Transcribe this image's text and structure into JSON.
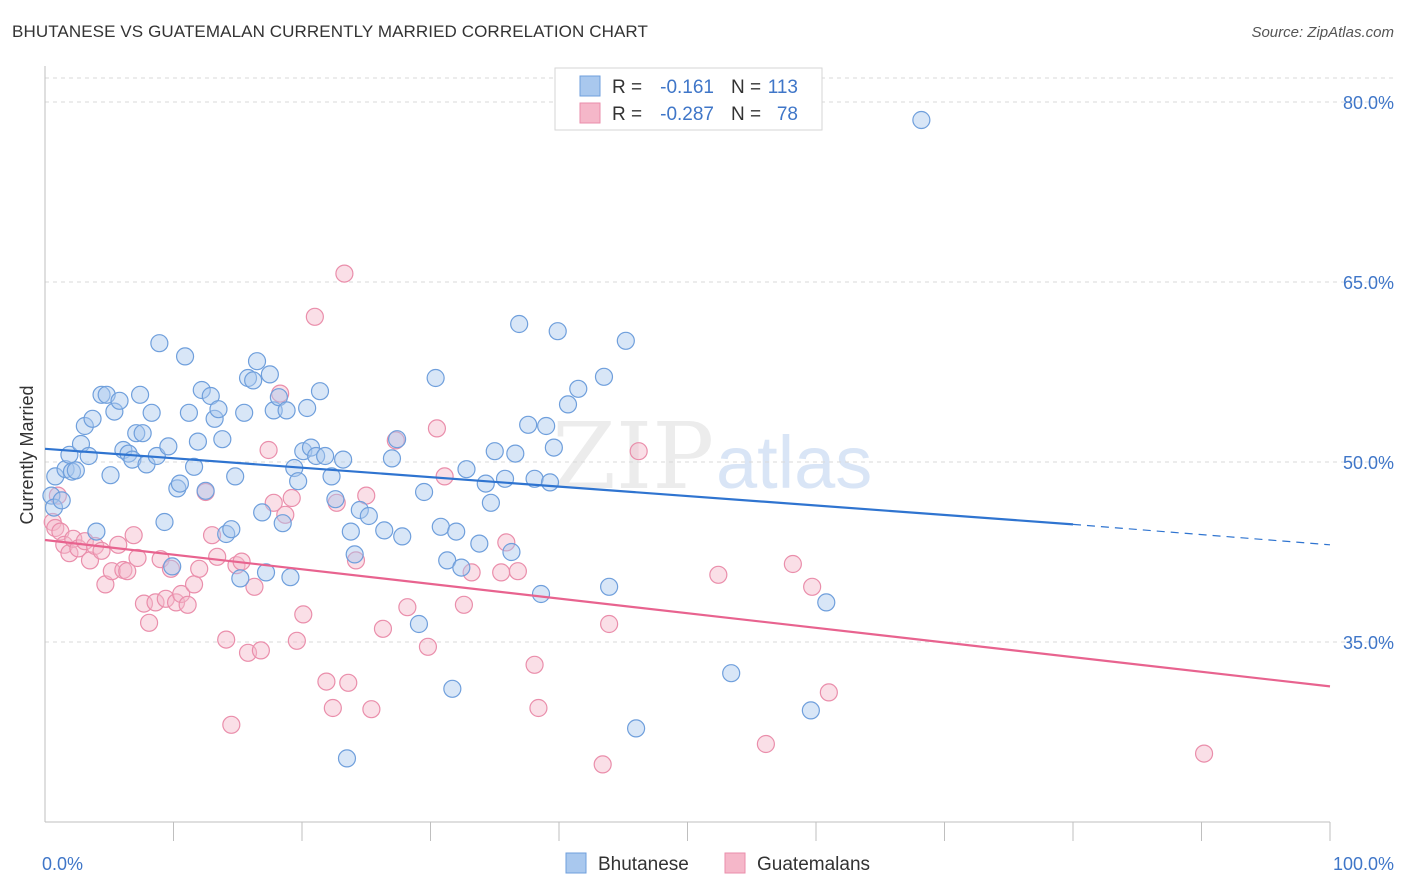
{
  "header": {
    "title": "BHUTANESE VS GUATEMALAN CURRENTLY MARRIED CORRELATION CHART",
    "source": "Source: ZipAtlas.com"
  },
  "watermark": {
    "zip": "ZIP",
    "atlas": "atlas"
  },
  "legend": {
    "items": [
      {
        "r_label": "R =",
        "r_value": "-0.161",
        "n_label": "N =",
        "n_value": "113"
      },
      {
        "r_label": "R =",
        "r_value": "-0.287",
        "n_label": "N =",
        "n_value": "78"
      }
    ]
  },
  "bottom_legend": [
    "Bhutanese",
    "Guatemalans"
  ],
  "colors": {
    "blue_fill": "#a9c8ee",
    "blue_stroke": "#6f9fdc",
    "blue_line": "#2f74d0",
    "pink_fill": "#f5b7c9",
    "pink_stroke": "#ea8eab",
    "pink_line": "#e8638f",
    "accent_text": "#3f76c8",
    "grid": "#d9d9d9"
  },
  "chart_data": {
    "type": "scatter",
    "title": "BHUTANESE VS GUATEMALAN CURRENTLY MARRIED CORRELATION CHART",
    "xlabel": "",
    "ylabel": "Currently Married",
    "xlim": [
      0,
      100
    ],
    "ylim": [
      20,
      83
    ],
    "x_tick_labels": [
      "0.0%",
      "100.0%"
    ],
    "y_ticks": [
      35,
      50,
      65,
      80
    ],
    "y_tick_labels": [
      "35.0%",
      "50.0%",
      "65.0%",
      "80.0%"
    ],
    "grid": true,
    "legend_position": "top-center",
    "series": [
      {
        "name": "Bhutanese",
        "color": "#a9c8ee",
        "r": -0.161,
        "n": 113,
        "trend": {
          "x": [
            0,
            80,
            100
          ],
          "y": [
            51.1,
            44.8,
            43.1
          ],
          "solid_until_x": 80
        },
        "points": [
          [
            0.5,
            47.2
          ],
          [
            0.7,
            46.2
          ],
          [
            0.8,
            48.8
          ],
          [
            1.3,
            46.8
          ],
          [
            1.6,
            49.4
          ],
          [
            1.9,
            50.6
          ],
          [
            2.1,
            49.2
          ],
          [
            2.4,
            49.3
          ],
          [
            2.8,
            51.5
          ],
          [
            3.1,
            53.0
          ],
          [
            3.4,
            50.5
          ],
          [
            3.7,
            53.6
          ],
          [
            4.0,
            44.2
          ],
          [
            4.4,
            55.6
          ],
          [
            4.8,
            55.6
          ],
          [
            5.1,
            48.9
          ],
          [
            5.4,
            54.2
          ],
          [
            5.8,
            55.1
          ],
          [
            6.1,
            51.0
          ],
          [
            6.5,
            50.7
          ],
          [
            6.8,
            50.2
          ],
          [
            7.1,
            52.4
          ],
          [
            7.4,
            55.6
          ],
          [
            7.6,
            52.4
          ],
          [
            7.9,
            49.8
          ],
          [
            8.3,
            54.1
          ],
          [
            8.7,
            50.5
          ],
          [
            8.9,
            59.9
          ],
          [
            9.3,
            45.0
          ],
          [
            9.6,
            51.3
          ],
          [
            9.9,
            41.3
          ],
          [
            10.3,
            47.8
          ],
          [
            10.5,
            48.2
          ],
          [
            10.9,
            58.8
          ],
          [
            11.2,
            54.1
          ],
          [
            11.6,
            49.6
          ],
          [
            11.9,
            51.7
          ],
          [
            12.2,
            56.0
          ],
          [
            12.5,
            47.6
          ],
          [
            12.9,
            55.5
          ],
          [
            13.2,
            53.6
          ],
          [
            13.5,
            54.4
          ],
          [
            13.8,
            51.9
          ],
          [
            14.1,
            44.0
          ],
          [
            14.5,
            44.4
          ],
          [
            14.8,
            48.8
          ],
          [
            15.2,
            40.3
          ],
          [
            15.5,
            54.1
          ],
          [
            15.8,
            57.0
          ],
          [
            16.2,
            56.8
          ],
          [
            16.5,
            58.4
          ],
          [
            16.9,
            45.8
          ],
          [
            17.2,
            40.8
          ],
          [
            17.5,
            57.3
          ],
          [
            17.8,
            54.3
          ],
          [
            18.2,
            55.4
          ],
          [
            18.5,
            44.9
          ],
          [
            18.8,
            54.3
          ],
          [
            19.1,
            40.4
          ],
          [
            19.4,
            49.5
          ],
          [
            19.7,
            48.4
          ],
          [
            20.1,
            50.9
          ],
          [
            20.4,
            54.5
          ],
          [
            20.7,
            51.2
          ],
          [
            21.1,
            50.5
          ],
          [
            21.4,
            55.9
          ],
          [
            21.8,
            50.5
          ],
          [
            22.3,
            48.8
          ],
          [
            22.6,
            46.9
          ],
          [
            23.2,
            50.2
          ],
          [
            23.5,
            25.3
          ],
          [
            23.8,
            44.2
          ],
          [
            24.1,
            42.3
          ],
          [
            24.5,
            46.0
          ],
          [
            25.2,
            45.5
          ],
          [
            26.4,
            44.3
          ],
          [
            27.0,
            50.3
          ],
          [
            27.4,
            51.9
          ],
          [
            27.8,
            43.8
          ],
          [
            29.1,
            36.5
          ],
          [
            29.5,
            47.5
          ],
          [
            30.4,
            57.0
          ],
          [
            30.8,
            44.6
          ],
          [
            31.3,
            41.8
          ],
          [
            31.7,
            31.1
          ],
          [
            32.0,
            44.2
          ],
          [
            32.4,
            41.2
          ],
          [
            32.8,
            49.4
          ],
          [
            33.8,
            43.2
          ],
          [
            34.3,
            48.2
          ],
          [
            34.7,
            46.6
          ],
          [
            35.0,
            50.9
          ],
          [
            35.8,
            48.6
          ],
          [
            36.3,
            42.5
          ],
          [
            36.6,
            50.7
          ],
          [
            36.9,
            61.5
          ],
          [
            37.6,
            53.1
          ],
          [
            38.1,
            48.6
          ],
          [
            38.6,
            39.0
          ],
          [
            39.0,
            53.0
          ],
          [
            39.3,
            48.3
          ],
          [
            39.6,
            51.2
          ],
          [
            39.9,
            60.9
          ],
          [
            40.7,
            54.8
          ],
          [
            41.5,
            56.1
          ],
          [
            43.5,
            57.1
          ],
          [
            43.9,
            39.6
          ],
          [
            45.2,
            60.1
          ],
          [
            46.0,
            27.8
          ],
          [
            53.4,
            32.4
          ],
          [
            59.6,
            29.3
          ],
          [
            60.8,
            38.3
          ],
          [
            68.2,
            78.5
          ]
        ]
      },
      {
        "name": "Guatemalans",
        "color": "#f5b7c9",
        "r": -0.287,
        "n": 78,
        "trend": {
          "x": [
            0,
            100
          ],
          "y": [
            43.5,
            31.3
          ]
        },
        "points": [
          [
            0.6,
            45.0
          ],
          [
            0.8,
            44.5
          ],
          [
            1.0,
            47.2
          ],
          [
            1.2,
            44.2
          ],
          [
            1.5,
            43.1
          ],
          [
            1.9,
            42.4
          ],
          [
            2.2,
            43.6
          ],
          [
            2.6,
            42.8
          ],
          [
            3.1,
            43.4
          ],
          [
            3.5,
            41.8
          ],
          [
            3.9,
            43.0
          ],
          [
            4.4,
            42.6
          ],
          [
            4.7,
            39.8
          ],
          [
            5.2,
            40.9
          ],
          [
            5.7,
            43.1
          ],
          [
            6.1,
            41.0
          ],
          [
            6.4,
            40.9
          ],
          [
            6.9,
            43.9
          ],
          [
            7.2,
            42.0
          ],
          [
            7.7,
            38.2
          ],
          [
            8.1,
            36.6
          ],
          [
            8.6,
            38.3
          ],
          [
            9.0,
            41.9
          ],
          [
            9.4,
            38.6
          ],
          [
            9.8,
            41.1
          ],
          [
            10.2,
            38.3
          ],
          [
            10.6,
            39.0
          ],
          [
            11.1,
            38.1
          ],
          [
            11.6,
            39.8
          ],
          [
            12.0,
            41.1
          ],
          [
            12.5,
            47.5
          ],
          [
            13.0,
            43.9
          ],
          [
            13.4,
            42.1
          ],
          [
            14.1,
            35.2
          ],
          [
            14.5,
            28.1
          ],
          [
            14.9,
            41.4
          ],
          [
            15.3,
            41.7
          ],
          [
            15.8,
            34.1
          ],
          [
            16.3,
            39.6
          ],
          [
            16.8,
            34.3
          ],
          [
            17.4,
            51.0
          ],
          [
            17.8,
            46.6
          ],
          [
            18.3,
            55.7
          ],
          [
            18.7,
            45.6
          ],
          [
            19.2,
            47.0
          ],
          [
            19.6,
            35.1
          ],
          [
            20.1,
            37.3
          ],
          [
            21.0,
            62.1
          ],
          [
            21.9,
            31.7
          ],
          [
            22.4,
            29.5
          ],
          [
            22.7,
            46.6
          ],
          [
            23.3,
            65.7
          ],
          [
            23.6,
            31.6
          ],
          [
            24.2,
            41.8
          ],
          [
            25.0,
            47.2
          ],
          [
            25.4,
            29.4
          ],
          [
            26.3,
            36.1
          ],
          [
            27.3,
            51.8
          ],
          [
            28.2,
            37.9
          ],
          [
            29.8,
            34.6
          ],
          [
            30.5,
            52.8
          ],
          [
            31.1,
            48.8
          ],
          [
            32.6,
            38.1
          ],
          [
            33.2,
            40.8
          ],
          [
            35.5,
            40.8
          ],
          [
            35.9,
            43.3
          ],
          [
            36.8,
            40.9
          ],
          [
            38.1,
            33.1
          ],
          [
            38.4,
            29.5
          ],
          [
            43.4,
            24.8
          ],
          [
            43.9,
            36.5
          ],
          [
            46.2,
            50.9
          ],
          [
            52.4,
            40.6
          ],
          [
            56.1,
            26.5
          ],
          [
            58.2,
            41.5
          ],
          [
            59.7,
            39.6
          ],
          [
            61.0,
            30.8
          ],
          [
            90.2,
            25.7
          ]
        ]
      }
    ]
  }
}
